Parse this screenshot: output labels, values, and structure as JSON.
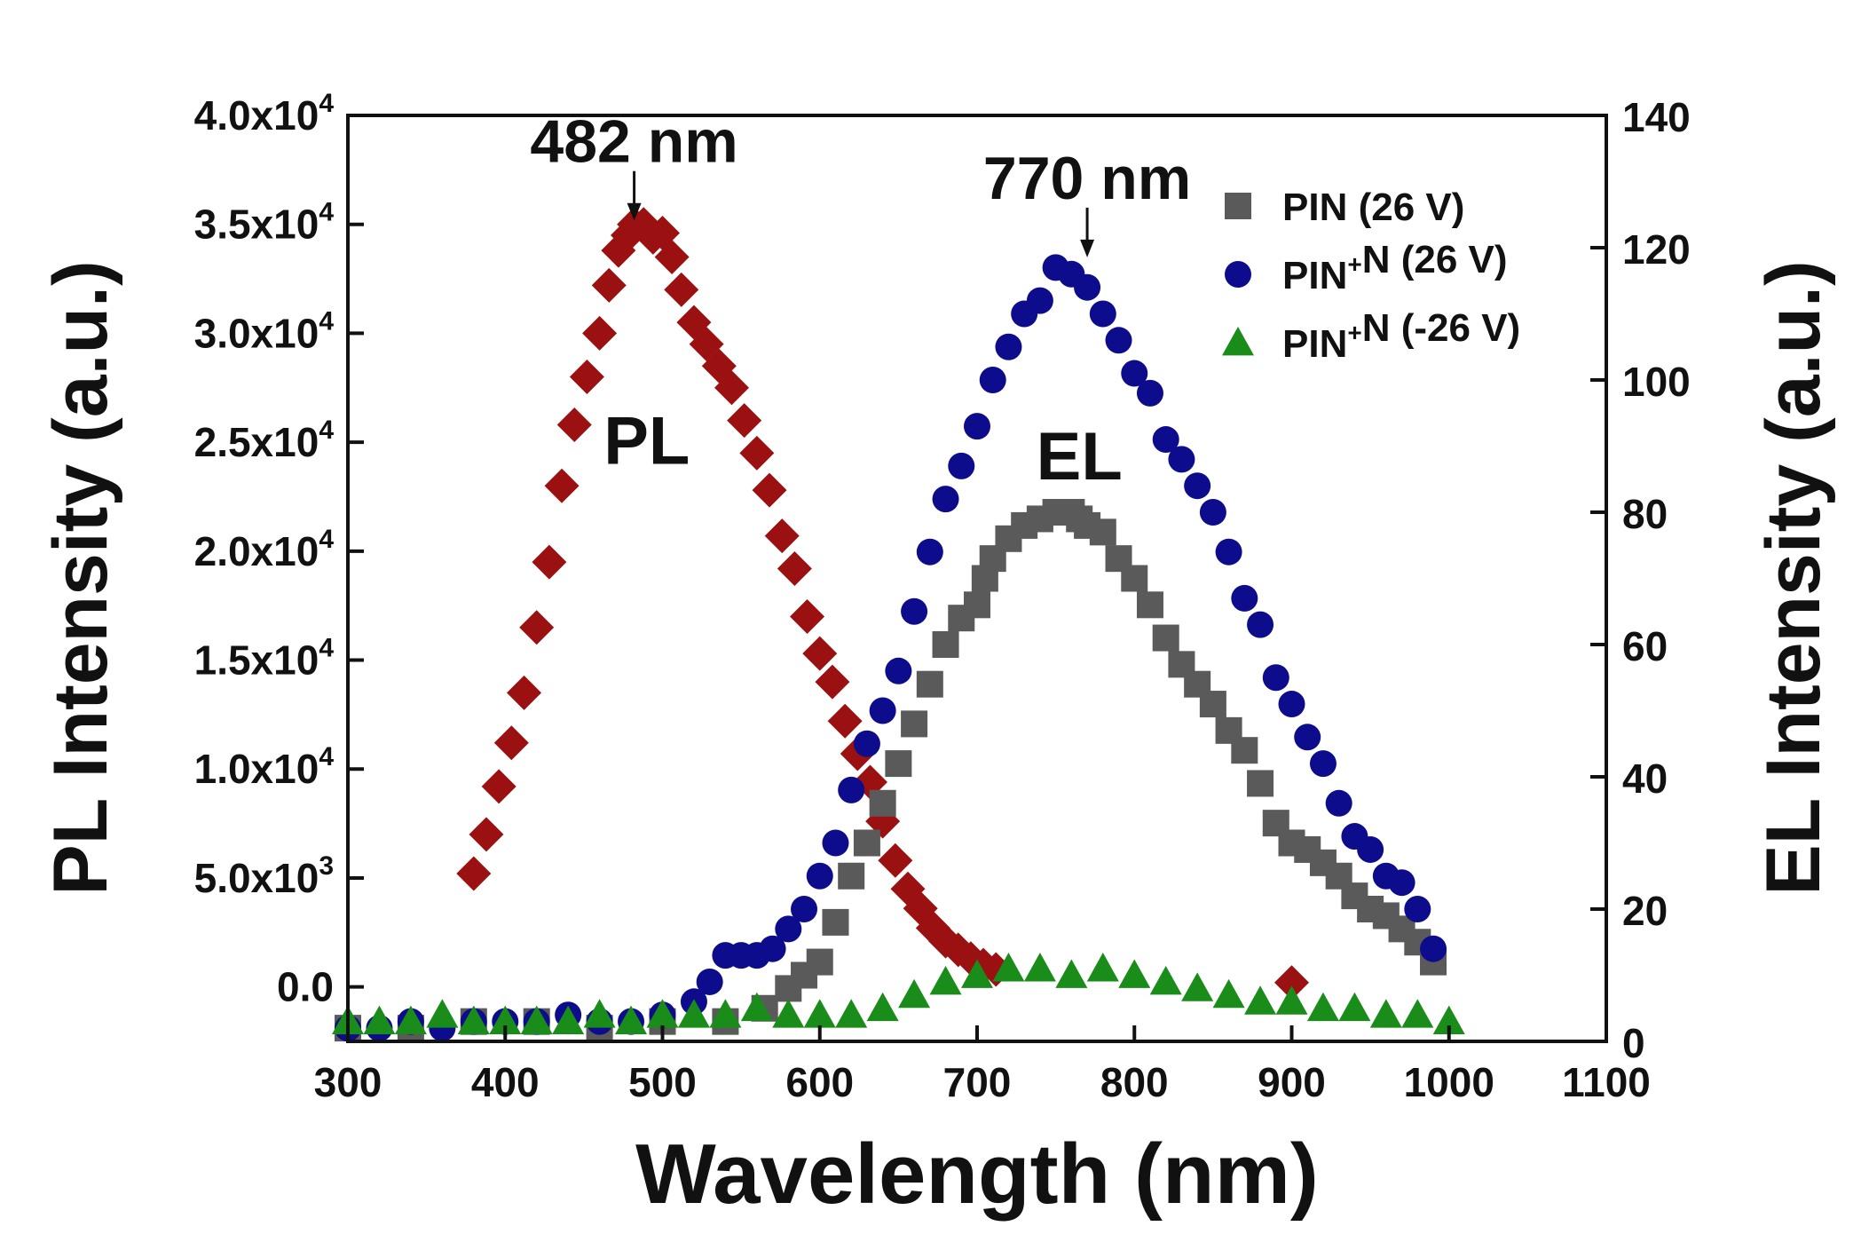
{
  "chart_data": {
    "type": "scatter",
    "xlabel": "Wavelength (nm)",
    "ylabel_left": "PL Intensity (a.u.)",
    "ylabel_right": "EL Intensity (a.u.)",
    "xlim": [
      300,
      1100
    ],
    "ylim_left": [
      -2500,
      40000
    ],
    "ylim_right": [
      0,
      140
    ],
    "x_ticks": [
      300,
      400,
      500,
      600,
      700,
      800,
      900,
      1000,
      1100
    ],
    "left_ticks": [
      {
        "value": 0,
        "mant": "0.0",
        "exp": ""
      },
      {
        "value": 5000,
        "mant": "5.0x10",
        "exp": "3"
      },
      {
        "value": 10000,
        "mant": "1.0x10",
        "exp": "4"
      },
      {
        "value": 15000,
        "mant": "1.5x10",
        "exp": "4"
      },
      {
        "value": 20000,
        "mant": "2.0x10",
        "exp": "4"
      },
      {
        "value": 25000,
        "mant": "2.5x10",
        "exp": "4"
      },
      {
        "value": 30000,
        "mant": "3.0x10",
        "exp": "4"
      },
      {
        "value": 35000,
        "mant": "3.5x10",
        "exp": "4"
      },
      {
        "value": 40000,
        "mant": "4.0x10",
        "exp": "4"
      }
    ],
    "right_ticks": [
      0,
      20,
      40,
      60,
      80,
      100,
      120,
      140
    ],
    "annotations": [
      {
        "text": "482 nm",
        "x": 482,
        "y": 35000,
        "axis": "left"
      },
      {
        "text": "770 nm",
        "x": 770,
        "y": 118,
        "axis": "right"
      }
    ],
    "curve_labels": [
      {
        "text": "PL",
        "x": 490,
        "y": 24000,
        "axis": "left"
      },
      {
        "text": "EL",
        "x": 765,
        "y": 85,
        "axis": "right"
      }
    ],
    "legend": {
      "position": "top-right",
      "entries": [
        {
          "label": "PIN (26 V)",
          "label_parts": [
            "PIN (26 V)"
          ],
          "series": "pin_26v"
        },
        {
          "label": "PIN+N (26 V)",
          "label_parts": [
            "PIN",
            "+",
            "N (26 V)"
          ],
          "series": "pinpn_26v"
        },
        {
          "label": "PIN+N (-26 V)",
          "label_parts": [
            "PIN",
            "+",
            "N (-26 V)"
          ],
          "series": "pinpn_m26v"
        }
      ]
    },
    "series": [
      {
        "id": "pl",
        "name": "PL",
        "axis": "left",
        "marker": "diamond",
        "color": "#9b1111",
        "x": [
          380,
          388,
          396,
          404,
          412,
          420,
          428,
          436,
          444,
          452,
          460,
          466,
          472,
          478,
          482,
          488,
          494,
          500,
          506,
          512,
          520,
          528,
          536,
          544,
          552,
          560,
          568,
          576,
          584,
          592,
          600,
          608,
          616,
          624,
          632,
          640,
          648,
          656,
          664,
          672,
          680,
          688,
          696,
          704,
          712,
          900
        ],
        "y": [
          5200,
          7000,
          9200,
          11200,
          13500,
          16500,
          19500,
          23000,
          25800,
          28000,
          30000,
          32200,
          33800,
          34500,
          35000,
          35000,
          34400,
          34600,
          33500,
          32000,
          30500,
          29500,
          28500,
          27500,
          26000,
          24500,
          22800,
          20700,
          19200,
          17000,
          15300,
          14000,
          12200,
          10700,
          9400,
          7600,
          5800,
          4500,
          3600,
          2700,
          2100,
          1700,
          1300,
          1000,
          800,
          200
        ]
      },
      {
        "id": "pin_26v",
        "name": "PIN (26 V)",
        "axis": "right",
        "marker": "square",
        "color": "#5a5a5a",
        "x": [
          300,
          340,
          380,
          420,
          460,
          500,
          540,
          565,
          580,
          590,
          600,
          610,
          620,
          630,
          640,
          650,
          660,
          670,
          680,
          690,
          700,
          705,
          710,
          720,
          730,
          740,
          750,
          760,
          765,
          770,
          780,
          790,
          800,
          810,
          820,
          830,
          840,
          850,
          860,
          870,
          880,
          890,
          900,
          910,
          920,
          930,
          940,
          950,
          960,
          970,
          980,
          990
        ],
        "y": [
          2,
          2,
          3,
          3,
          2,
          3,
          3,
          5,
          8,
          10,
          12,
          18,
          25,
          30,
          36,
          42,
          48,
          54,
          60,
          64,
          66,
          70,
          73,
          76,
          78,
          79,
          80,
          80,
          79,
          78,
          77,
          73,
          70,
          66,
          61,
          57,
          54,
          51,
          47,
          44,
          39,
          33,
          30,
          29,
          27,
          25,
          22,
          20,
          19,
          17,
          15,
          12
        ]
      },
      {
        "id": "pinpn_26v",
        "name": "PIN+N (26 V)",
        "axis": "right",
        "marker": "circle",
        "color": "#0c0c8c",
        "x": [
          300,
          320,
          340,
          360,
          380,
          400,
          420,
          440,
          460,
          480,
          500,
          520,
          530,
          540,
          550,
          560,
          570,
          580,
          590,
          600,
          610,
          620,
          630,
          640,
          650,
          660,
          670,
          680,
          690,
          700,
          710,
          720,
          730,
          740,
          750,
          760,
          770,
          780,
          790,
          800,
          810,
          820,
          830,
          840,
          850,
          860,
          870,
          880,
          890,
          900,
          910,
          920,
          930,
          940,
          950,
          960,
          970,
          980,
          990
        ],
        "y": [
          2,
          2,
          3,
          2,
          3,
          3,
          3,
          4,
          3,
          3,
          4,
          6,
          9,
          13,
          13,
          13,
          14,
          17,
          20,
          25,
          30,
          38,
          45,
          50,
          56,
          65,
          74,
          82,
          87,
          93,
          100,
          105,
          110,
          112,
          117,
          116,
          114,
          110,
          106,
          101,
          98,
          91,
          88,
          84,
          80,
          74,
          67,
          63,
          55,
          51,
          46,
          42,
          36,
          31,
          29,
          25,
          24,
          20,
          14
        ]
      },
      {
        "id": "pinpn_m26v",
        "name": "PIN+N (-26 V)",
        "axis": "right",
        "marker": "triangle",
        "color": "#1a8c1a",
        "x": [
          300,
          320,
          340,
          360,
          380,
          400,
          420,
          440,
          460,
          480,
          500,
          520,
          540,
          560,
          580,
          600,
          620,
          640,
          660,
          680,
          700,
          720,
          740,
          760,
          780,
          800,
          820,
          840,
          860,
          880,
          900,
          920,
          940,
          960,
          980,
          1000
        ],
        "y": [
          3,
          3,
          3,
          4,
          3,
          3,
          3,
          3,
          4,
          3,
          4,
          4,
          4,
          5,
          4,
          4,
          4,
          5,
          7,
          9,
          10,
          11,
          11,
          10,
          11,
          10,
          9,
          8,
          7,
          6,
          6,
          5,
          5,
          4,
          4,
          3
        ]
      }
    ]
  }
}
